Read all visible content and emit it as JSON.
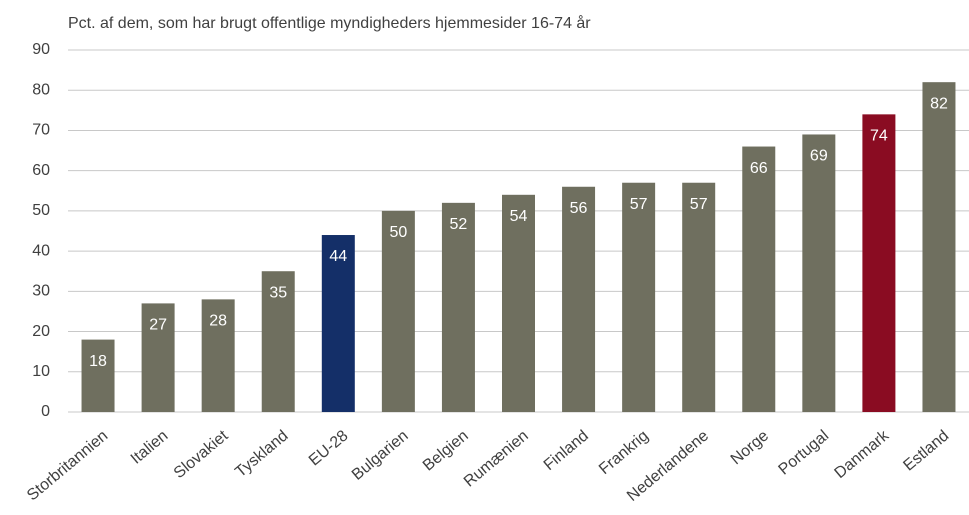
{
  "chart_data": {
    "type": "bar",
    "title": "Pct. af dem, som har brugt offentlige myndigheders hjemmesider 16-74 år",
    "categories": [
      "Storbritannien",
      "Italien",
      "Slovakiet",
      "Tyskland",
      "EU-28",
      "Bulgarien",
      "Belgien",
      "Rumænien",
      "Finland",
      "Frankrig",
      "Nederlandene",
      "Norge",
      "Portugal",
      "Danmark",
      "Estland"
    ],
    "values": [
      18,
      27,
      28,
      35,
      44,
      50,
      52,
      54,
      56,
      57,
      57,
      66,
      69,
      74,
      82
    ],
    "colors": [
      "#6f6f5f",
      "#6f6f5f",
      "#6f6f5f",
      "#6f6f5f",
      "#142f68",
      "#6f6f5f",
      "#6f6f5f",
      "#6f6f5f",
      "#6f6f5f",
      "#6f6f5f",
      "#6f6f5f",
      "#6f6f5f",
      "#6f6f5f",
      "#8a0c22",
      "#6f6f5f"
    ],
    "ylim": [
      0,
      90
    ],
    "yticks": [
      0,
      10,
      20,
      30,
      40,
      50,
      60,
      70,
      80,
      90
    ],
    "grid": true
  }
}
